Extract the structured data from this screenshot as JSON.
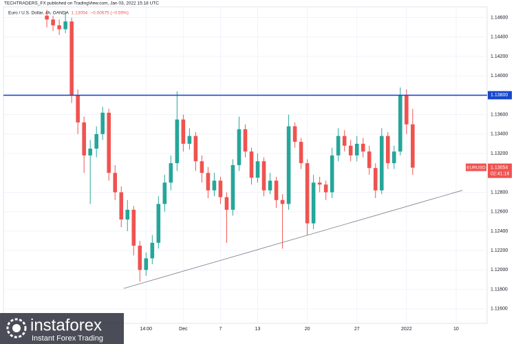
{
  "header": {
    "published": "TECHTRADERS_FX published on TradingView.com, Jan 03, 2022 15:18 UTC"
  },
  "chart_data": {
    "type": "candlestick",
    "title": "Euro / U.S. Dollar, 4h, OANDA",
    "change_label": "−0.00675 (−0.59%)",
    "up_color": "#26a69a",
    "down_color": "#ef5350",
    "ylim": [
      1.1145,
      1.1471
    ],
    "yticks": [
      {
        "value": 1.146,
        "label": "1.14600"
      },
      {
        "value": 1.144,
        "label": "1.14400"
      },
      {
        "value": 1.142,
        "label": "1.14200"
      },
      {
        "value": 1.14,
        "label": "1.14000"
      },
      {
        "value": 1.136,
        "label": "1.13600"
      },
      {
        "value": 1.134,
        "label": "1.13400"
      },
      {
        "value": 1.132,
        "label": "1.13200"
      },
      {
        "value": 1.128,
        "label": "1.12800"
      },
      {
        "value": 1.126,
        "label": "1.12600"
      },
      {
        "value": 1.124,
        "label": "1.12400"
      },
      {
        "value": 1.122,
        "label": "1.12200"
      },
      {
        "value": 1.12,
        "label": "1.12000"
      },
      {
        "value": 1.118,
        "label": "1.11800"
      },
      {
        "value": 1.116,
        "label": "1.11600"
      }
    ],
    "xlim": [
      -7,
      71
    ],
    "xticks": [
      {
        "value": 16,
        "label": "14:00"
      },
      {
        "value": 22,
        "label": "Dec"
      },
      {
        "value": 28,
        "label": "7"
      },
      {
        "value": 34,
        "label": "13"
      },
      {
        "value": 42,
        "label": "20"
      },
      {
        "value": 50,
        "label": "27"
      },
      {
        "value": 58,
        "label": "2022"
      },
      {
        "value": 66,
        "label": "10"
      }
    ],
    "grid": true,
    "ohlc": [
      [
        1.1462,
        1.1468,
        1.145,
        1.1458
      ],
      [
        1.1458,
        1.1462,
        1.1446,
        1.1452
      ],
      [
        1.1452,
        1.1458,
        1.1442,
        1.1448
      ],
      [
        1.1448,
        1.1466,
        1.1444,
        1.1456
      ],
      [
        1.1456,
        1.146,
        1.1372,
        1.138
      ],
      [
        1.138,
        1.1386,
        1.134,
        1.1352
      ],
      [
        1.1352,
        1.1358,
        1.13,
        1.1318
      ],
      [
        1.1318,
        1.1334,
        1.1268,
        1.1325
      ],
      [
        1.1325,
        1.1348,
        1.1316,
        1.134
      ],
      [
        1.134,
        1.1368,
        1.1334,
        1.1362
      ],
      [
        1.1362,
        1.1366,
        1.1292,
        1.13
      ],
      [
        1.13,
        1.1308,
        1.1272,
        1.128
      ],
      [
        1.128,
        1.1286,
        1.1244,
        1.1252
      ],
      [
        1.1252,
        1.1272,
        1.124,
        1.1262
      ],
      [
        1.1262,
        1.1266,
        1.1215,
        1.1225
      ],
      [
        1.1225,
        1.123,
        1.1188,
        1.12
      ],
      [
        1.12,
        1.1218,
        1.1194,
        1.1212
      ],
      [
        1.1212,
        1.1236,
        1.1206,
        1.1228
      ],
      [
        1.1228,
        1.1276,
        1.1222,
        1.1268
      ],
      [
        1.1268,
        1.1298,
        1.126,
        1.129
      ],
      [
        1.129,
        1.1318,
        1.1282,
        1.131
      ],
      [
        1.131,
        1.1384,
        1.1302,
        1.1355
      ],
      [
        1.1355,
        1.136,
        1.1322,
        1.133
      ],
      [
        1.133,
        1.1346,
        1.1324,
        1.1338
      ],
      [
        1.1338,
        1.1342,
        1.1302,
        1.1312
      ],
      [
        1.1312,
        1.1318,
        1.129,
        1.13
      ],
      [
        1.13,
        1.1306,
        1.1274,
        1.1282
      ],
      [
        1.1282,
        1.13,
        1.1276,
        1.1292
      ],
      [
        1.1292,
        1.1296,
        1.1268,
        1.1275
      ],
      [
        1.1275,
        1.128,
        1.1228,
        1.1262
      ],
      [
        1.1262,
        1.1314,
        1.1256,
        1.1308
      ],
      [
        1.1308,
        1.1358,
        1.1302,
        1.1345
      ],
      [
        1.1345,
        1.135,
        1.1316,
        1.1322
      ],
      [
        1.1322,
        1.1326,
        1.1288,
        1.1295
      ],
      [
        1.1295,
        1.132,
        1.129,
        1.1312
      ],
      [
        1.1312,
        1.1316,
        1.1276,
        1.1282
      ],
      [
        1.1282,
        1.13,
        1.1278,
        1.1292
      ],
      [
        1.1292,
        1.1296,
        1.1264,
        1.1272
      ],
      [
        1.1272,
        1.1278,
        1.1222,
        1.1268
      ],
      [
        1.1268,
        1.136,
        1.1262,
        1.1348
      ],
      [
        1.1348,
        1.1352,
        1.1326,
        1.1332
      ],
      [
        1.1332,
        1.1336,
        1.1304,
        1.131
      ],
      [
        1.131,
        1.1314,
        1.1236,
        1.1248
      ],
      [
        1.1248,
        1.1298,
        1.1242,
        1.129
      ],
      [
        1.129,
        1.1296,
        1.128,
        1.1288
      ],
      [
        1.1288,
        1.1292,
        1.1272,
        1.128
      ],
      [
        1.128,
        1.1326,
        1.1274,
        1.1318
      ],
      [
        1.1318,
        1.1346,
        1.1312,
        1.1338
      ],
      [
        1.1338,
        1.1344,
        1.1322,
        1.1328
      ],
      [
        1.1328,
        1.1334,
        1.1312,
        1.1318
      ],
      [
        1.1318,
        1.1338,
        1.1312,
        1.133
      ],
      [
        1.133,
        1.1336,
        1.1316,
        1.1322
      ],
      [
        1.1322,
        1.1328,
        1.1298,
        1.1305
      ],
      [
        1.1305,
        1.131,
        1.1274,
        1.1282
      ],
      [
        1.1282,
        1.1346,
        1.1278,
        1.1338
      ],
      [
        1.1338,
        1.1342,
        1.1304,
        1.131
      ],
      [
        1.131,
        1.1328,
        1.1304,
        1.1322
      ],
      [
        1.1322,
        1.1388,
        1.1318,
        1.138
      ],
      [
        1.138,
        1.1386,
        1.134,
        1.135
      ],
      [
        1.135,
        1.1366,
        1.1298,
        1.13054
      ]
    ],
    "level_line": {
      "value": 1.138,
      "label": "1.13800",
      "color": "#1848cc"
    },
    "last_price": {
      "value": 1.13054,
      "label": "1.13054",
      "symbol": "EURUSD",
      "countdown": "02:41:18"
    },
    "trendline": {
      "x": [
        12.4,
        67
      ],
      "y": [
        1.1181,
        1.1282
      ],
      "color": "#787b86"
    }
  },
  "watermark": {
    "brand": "instaforex",
    "tagline": "Instant Forex Trading"
  }
}
